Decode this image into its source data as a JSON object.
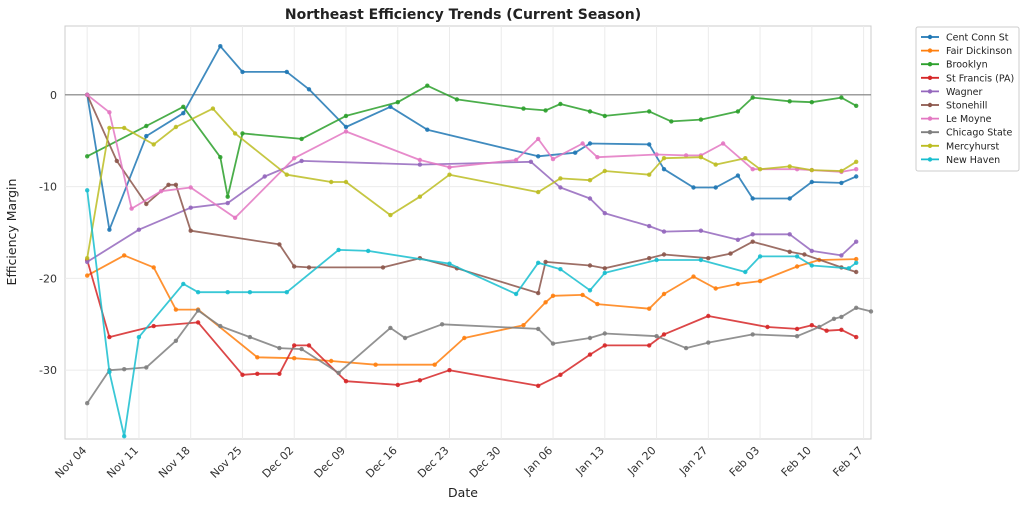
{
  "chart_data": {
    "type": "line",
    "title": "Northeast Efficiency Trends (Current Season)",
    "xlabel": "Date",
    "ylabel": "Efficiency Margin",
    "xlim": [
      "2024-11-01",
      "2025-02-18"
    ],
    "ylim": [
      -37.5,
      7.5
    ],
    "x_ticks": [
      {
        "date": "2024-11-04",
        "label": "Nov 04"
      },
      {
        "date": "2024-11-11",
        "label": "Nov 11"
      },
      {
        "date": "2024-11-18",
        "label": "Nov 18"
      },
      {
        "date": "2024-11-25",
        "label": "Nov 25"
      },
      {
        "date": "2024-12-02",
        "label": "Dec 02"
      },
      {
        "date": "2024-12-09",
        "label": "Dec 09"
      },
      {
        "date": "2024-12-16",
        "label": "Dec 16"
      },
      {
        "date": "2024-12-23",
        "label": "Dec 23"
      },
      {
        "date": "2024-12-30",
        "label": "Dec 30"
      },
      {
        "date": "2025-01-06",
        "label": "Jan 06"
      },
      {
        "date": "2025-01-13",
        "label": "Jan 13"
      },
      {
        "date": "2025-01-20",
        "label": "Jan 20"
      },
      {
        "date": "2025-01-27",
        "label": "Jan 27"
      },
      {
        "date": "2025-02-03",
        "label": "Feb 03"
      },
      {
        "date": "2025-02-10",
        "label": "Feb 10"
      },
      {
        "date": "2025-02-17",
        "label": "Feb 17"
      }
    ],
    "y_ticks": [
      0,
      -10,
      -20,
      -30
    ],
    "grid": true,
    "reference_line": 0,
    "legend_position": "outside-top-right",
    "series": [
      {
        "name": "Cent Conn St",
        "color": "#1f77b4",
        "points": [
          [
            "2024-11-04",
            0
          ],
          [
            "2024-11-07",
            -14.7
          ],
          [
            "2024-11-12",
            -4.5
          ],
          [
            "2024-11-17",
            -2.0
          ],
          [
            "2024-11-22",
            5.3
          ],
          [
            "2024-11-25",
            2.5
          ],
          [
            "2024-12-01",
            2.5
          ],
          [
            "2024-12-04",
            0.6
          ],
          [
            "2024-12-09",
            -3.5
          ],
          [
            "2024-12-15",
            -1.3
          ],
          [
            "2024-12-20",
            -3.8
          ],
          [
            "2025-01-04",
            -6.7
          ],
          [
            "2025-01-09",
            -6.3
          ],
          [
            "2025-01-11",
            -5.3
          ],
          [
            "2025-01-19",
            -5.4
          ],
          [
            "2025-01-21",
            -8.1
          ],
          [
            "2025-01-25",
            -10.1
          ],
          [
            "2025-01-28",
            -10.1
          ],
          [
            "2025-01-31",
            -8.8
          ],
          [
            "2025-02-02",
            -11.3
          ],
          [
            "2025-02-07",
            -11.3
          ],
          [
            "2025-02-10",
            -9.5
          ],
          [
            "2025-02-14",
            -9.6
          ],
          [
            "2025-02-16",
            -8.9
          ]
        ]
      },
      {
        "name": "Fair Dickinson",
        "color": "#ff7f0e",
        "points": [
          [
            "2024-11-04",
            -19.7
          ],
          [
            "2024-11-09",
            -17.5
          ],
          [
            "2024-11-13",
            -18.8
          ],
          [
            "2024-11-16",
            -23.4
          ],
          [
            "2024-11-19",
            -23.4
          ],
          [
            "2024-11-27",
            -28.6
          ],
          [
            "2024-12-02",
            -28.7
          ],
          [
            "2024-12-07",
            -29.0
          ],
          [
            "2024-12-13",
            -29.4
          ],
          [
            "2024-12-21",
            -29.4
          ],
          [
            "2024-12-25",
            -26.5
          ],
          [
            "2025-01-02",
            -25.1
          ],
          [
            "2025-01-05",
            -22.6
          ],
          [
            "2025-01-06",
            -21.9
          ],
          [
            "2025-01-10",
            -21.8
          ],
          [
            "2025-01-12",
            -22.8
          ],
          [
            "2025-01-19",
            -23.3
          ],
          [
            "2025-01-21",
            -21.7
          ],
          [
            "2025-01-25",
            -19.8
          ],
          [
            "2025-01-28",
            -21.1
          ],
          [
            "2025-01-31",
            -20.6
          ],
          [
            "2025-02-03",
            -20.3
          ],
          [
            "2025-02-08",
            -18.7
          ],
          [
            "2025-02-11",
            -18.0
          ],
          [
            "2025-02-16",
            -17.9
          ]
        ]
      },
      {
        "name": "Brooklyn",
        "color": "#2ca02c",
        "points": [
          [
            "2024-11-04",
            -6.7
          ],
          [
            "2024-11-12",
            -3.4
          ],
          [
            "2024-11-17",
            -1.3
          ],
          [
            "2024-11-22",
            -6.8
          ],
          [
            "2024-11-23",
            -11.1
          ],
          [
            "2024-11-25",
            -4.2
          ],
          [
            "2024-12-03",
            -4.8
          ],
          [
            "2024-12-09",
            -2.3
          ],
          [
            "2024-12-16",
            -0.8
          ],
          [
            "2024-12-20",
            1.0
          ],
          [
            "2024-12-24",
            -0.5
          ],
          [
            "2025-01-02",
            -1.5
          ],
          [
            "2025-01-05",
            -1.7
          ],
          [
            "2025-01-07",
            -1.0
          ],
          [
            "2025-01-11",
            -1.8
          ],
          [
            "2025-01-13",
            -2.3
          ],
          [
            "2025-01-19",
            -1.8
          ],
          [
            "2025-01-22",
            -2.9
          ],
          [
            "2025-01-26",
            -2.7
          ],
          [
            "2025-01-31",
            -1.8
          ],
          [
            "2025-02-02",
            -0.3
          ],
          [
            "2025-02-07",
            -0.7
          ],
          [
            "2025-02-10",
            -0.8
          ],
          [
            "2025-02-14",
            -0.3
          ],
          [
            "2025-02-16",
            -1.2
          ]
        ]
      },
      {
        "name": "St Francis (PA)",
        "color": "#d62728",
        "points": [
          [
            "2024-11-04",
            -18.0
          ],
          [
            "2024-11-07",
            -26.4
          ],
          [
            "2024-11-13",
            -25.2
          ],
          [
            "2024-11-19",
            -24.8
          ],
          [
            "2024-11-25",
            -30.5
          ],
          [
            "2024-11-27",
            -30.4
          ],
          [
            "2024-11-30",
            -30.4
          ],
          [
            "2024-12-02",
            -27.3
          ],
          [
            "2024-12-04",
            -27.3
          ],
          [
            "2024-12-09",
            -31.2
          ],
          [
            "2024-12-16",
            -31.6
          ],
          [
            "2024-12-19",
            -31.1
          ],
          [
            "2024-12-23",
            -30.0
          ],
          [
            "2025-01-04",
            -31.7
          ],
          [
            "2025-01-07",
            -30.5
          ],
          [
            "2025-01-11",
            -28.3
          ],
          [
            "2025-01-13",
            -27.3
          ],
          [
            "2025-01-19",
            -27.3
          ],
          [
            "2025-01-21",
            -26.1
          ],
          [
            "2025-01-27",
            -24.1
          ],
          [
            "2025-02-04",
            -25.3
          ],
          [
            "2025-02-08",
            -25.5
          ],
          [
            "2025-02-10",
            -25.1
          ],
          [
            "2025-02-12",
            -25.7
          ],
          [
            "2025-02-14",
            -25.6
          ],
          [
            "2025-02-16",
            -26.4
          ]
        ]
      },
      {
        "name": "Wagner",
        "color": "#9467bd",
        "points": [
          [
            "2024-11-04",
            -18.2
          ],
          [
            "2024-11-11",
            -14.7
          ],
          [
            "2024-11-18",
            -12.3
          ],
          [
            "2024-11-23",
            -11.8
          ],
          [
            "2024-11-28",
            -8.9
          ],
          [
            "2024-12-03",
            -7.2
          ],
          [
            "2024-12-19",
            -7.6
          ],
          [
            "2025-01-03",
            -7.3
          ],
          [
            "2025-01-07",
            -10.1
          ],
          [
            "2025-01-11",
            -11.3
          ],
          [
            "2025-01-13",
            -12.9
          ],
          [
            "2025-01-19",
            -14.3
          ],
          [
            "2025-01-21",
            -14.9
          ],
          [
            "2025-01-26",
            -14.8
          ],
          [
            "2025-01-31",
            -15.8
          ],
          [
            "2025-02-02",
            -15.2
          ],
          [
            "2025-02-07",
            -15.2
          ],
          [
            "2025-02-10",
            -17.0
          ],
          [
            "2025-02-14",
            -17.5
          ],
          [
            "2025-02-16",
            -16.0
          ]
        ]
      },
      {
        "name": "Stonehill",
        "color": "#8c564b",
        "points": [
          [
            "2024-11-04",
            0
          ],
          [
            "2024-11-08",
            -7.2
          ],
          [
            "2024-11-12",
            -11.9
          ],
          [
            "2024-11-15",
            -9.8
          ],
          [
            "2024-11-16",
            -9.8
          ],
          [
            "2024-11-18",
            -14.8
          ],
          [
            "2024-11-30",
            -16.3
          ],
          [
            "2024-12-02",
            -18.7
          ],
          [
            "2024-12-04",
            -18.8
          ],
          [
            "2024-12-14",
            -18.8
          ],
          [
            "2024-12-19",
            -17.8
          ],
          [
            "2024-12-24",
            -18.9
          ],
          [
            "2025-01-04",
            -21.6
          ],
          [
            "2025-01-05",
            -18.2
          ],
          [
            "2025-01-11",
            -18.6
          ],
          [
            "2025-01-13",
            -18.9
          ],
          [
            "2025-01-19",
            -17.8
          ],
          [
            "2025-01-21",
            -17.4
          ],
          [
            "2025-01-27",
            -17.8
          ],
          [
            "2025-01-30",
            -17.3
          ],
          [
            "2025-02-02",
            -16.0
          ],
          [
            "2025-02-07",
            -17.1
          ],
          [
            "2025-02-09",
            -17.4
          ],
          [
            "2025-02-14",
            -18.8
          ],
          [
            "2025-02-16",
            -19.3
          ]
        ]
      },
      {
        "name": "Le Moyne",
        "color": "#e377c2",
        "points": [
          [
            "2024-11-04",
            0
          ],
          [
            "2024-11-07",
            -1.9
          ],
          [
            "2024-11-10",
            -12.4
          ],
          [
            "2024-11-14",
            -10.5
          ],
          [
            "2024-11-18",
            -10.1
          ],
          [
            "2024-11-24",
            -13.4
          ],
          [
            "2024-12-02",
            -6.9
          ],
          [
            "2024-12-09",
            -4.0
          ],
          [
            "2024-12-19",
            -7.1
          ],
          [
            "2024-12-23",
            -7.9
          ],
          [
            "2025-01-01",
            -7.1
          ],
          [
            "2025-01-04",
            -4.8
          ],
          [
            "2025-01-06",
            -7.0
          ],
          [
            "2025-01-10",
            -5.3
          ],
          [
            "2025-01-12",
            -6.8
          ],
          [
            "2025-01-20",
            -6.5
          ],
          [
            "2025-01-24",
            -6.6
          ],
          [
            "2025-01-26",
            -6.6
          ],
          [
            "2025-01-29",
            -5.3
          ],
          [
            "2025-02-02",
            -8.1
          ],
          [
            "2025-02-08",
            -8.1
          ],
          [
            "2025-02-10",
            -8.2
          ],
          [
            "2025-02-14",
            -8.4
          ],
          [
            "2025-02-16",
            -8.1
          ]
        ]
      },
      {
        "name": "Chicago State",
        "color": "#7f7f7f",
        "points": [
          [
            "2024-11-04",
            -33.6
          ],
          [
            "2024-11-07",
            -30.0
          ],
          [
            "2024-11-09",
            -29.9
          ],
          [
            "2024-11-12",
            -29.7
          ],
          [
            "2024-11-16",
            -26.8
          ],
          [
            "2024-11-19",
            -23.5
          ],
          [
            "2024-11-22",
            -25.2
          ],
          [
            "2024-11-26",
            -26.4
          ],
          [
            "2024-11-30",
            -27.6
          ],
          [
            "2024-12-03",
            -27.7
          ],
          [
            "2024-12-08",
            -30.3
          ],
          [
            "2024-12-15",
            -25.4
          ],
          [
            "2024-12-17",
            -26.5
          ],
          [
            "2024-12-22",
            -25.0
          ],
          [
            "2025-01-04",
            -25.5
          ],
          [
            "2025-01-06",
            -27.1
          ],
          [
            "2025-01-11",
            -26.5
          ],
          [
            "2025-01-13",
            -26.0
          ],
          [
            "2025-01-20",
            -26.3
          ],
          [
            "2025-01-24",
            -27.6
          ],
          [
            "2025-01-27",
            -27.0
          ],
          [
            "2025-02-02",
            -26.1
          ],
          [
            "2025-02-08",
            -26.3
          ],
          [
            "2025-02-11",
            -25.3
          ],
          [
            "2025-02-13",
            -24.4
          ],
          [
            "2025-02-14",
            -24.2
          ],
          [
            "2025-02-16",
            -23.2
          ],
          [
            "2025-02-18",
            -23.6
          ]
        ]
      },
      {
        "name": "Mercyhurst",
        "color": "#bcbd22",
        "points": [
          [
            "2024-11-04",
            -17.8
          ],
          [
            "2024-11-07",
            -3.6
          ],
          [
            "2024-11-09",
            -3.6
          ],
          [
            "2024-11-13",
            -5.4
          ],
          [
            "2024-11-16",
            -3.5
          ],
          [
            "2024-11-21",
            -1.5
          ],
          [
            "2024-11-24",
            -4.2
          ],
          [
            "2024-12-01",
            -8.7
          ],
          [
            "2024-12-07",
            -9.5
          ],
          [
            "2024-12-09",
            -9.5
          ],
          [
            "2024-12-15",
            -13.1
          ],
          [
            "2024-12-19",
            -11.1
          ],
          [
            "2024-12-23",
            -8.7
          ],
          [
            "2025-01-04",
            -10.6
          ],
          [
            "2025-01-07",
            -9.1
          ],
          [
            "2025-01-11",
            -9.3
          ],
          [
            "2025-01-13",
            -8.3
          ],
          [
            "2025-01-19",
            -8.7
          ],
          [
            "2025-01-21",
            -6.9
          ],
          [
            "2025-01-26",
            -6.8
          ],
          [
            "2025-01-28",
            -7.6
          ],
          [
            "2025-02-01",
            -6.9
          ],
          [
            "2025-02-03",
            -8.1
          ],
          [
            "2025-02-07",
            -7.8
          ],
          [
            "2025-02-10",
            -8.2
          ],
          [
            "2025-02-14",
            -8.3
          ],
          [
            "2025-02-16",
            -7.3
          ]
        ]
      },
      {
        "name": "New Haven",
        "color": "#17becf",
        "points": [
          [
            "2024-11-04",
            -10.4
          ],
          [
            "2024-11-07",
            -30.2
          ],
          [
            "2024-11-09",
            -37.2
          ],
          [
            "2024-11-11",
            -26.4
          ],
          [
            "2024-11-17",
            -20.6
          ],
          [
            "2024-11-19",
            -21.5
          ],
          [
            "2024-11-23",
            -21.5
          ],
          [
            "2024-11-26",
            -21.5
          ],
          [
            "2024-12-01",
            -21.5
          ],
          [
            "2024-12-08",
            -16.9
          ],
          [
            "2024-12-12",
            -17.0
          ],
          [
            "2024-12-23",
            -18.4
          ],
          [
            "2025-01-01",
            -21.7
          ],
          [
            "2025-01-04",
            -18.3
          ],
          [
            "2025-01-07",
            -19.0
          ],
          [
            "2025-01-11",
            -21.3
          ],
          [
            "2025-01-13",
            -19.4
          ],
          [
            "2025-01-20",
            -18.0
          ],
          [
            "2025-01-26",
            -18.0
          ],
          [
            "2025-02-01",
            -19.3
          ],
          [
            "2025-02-03",
            -17.6
          ],
          [
            "2025-02-08",
            -17.6
          ],
          [
            "2025-02-10",
            -18.6
          ],
          [
            "2025-02-15",
            -18.9
          ],
          [
            "2025-02-16",
            -18.3
          ]
        ]
      }
    ]
  }
}
